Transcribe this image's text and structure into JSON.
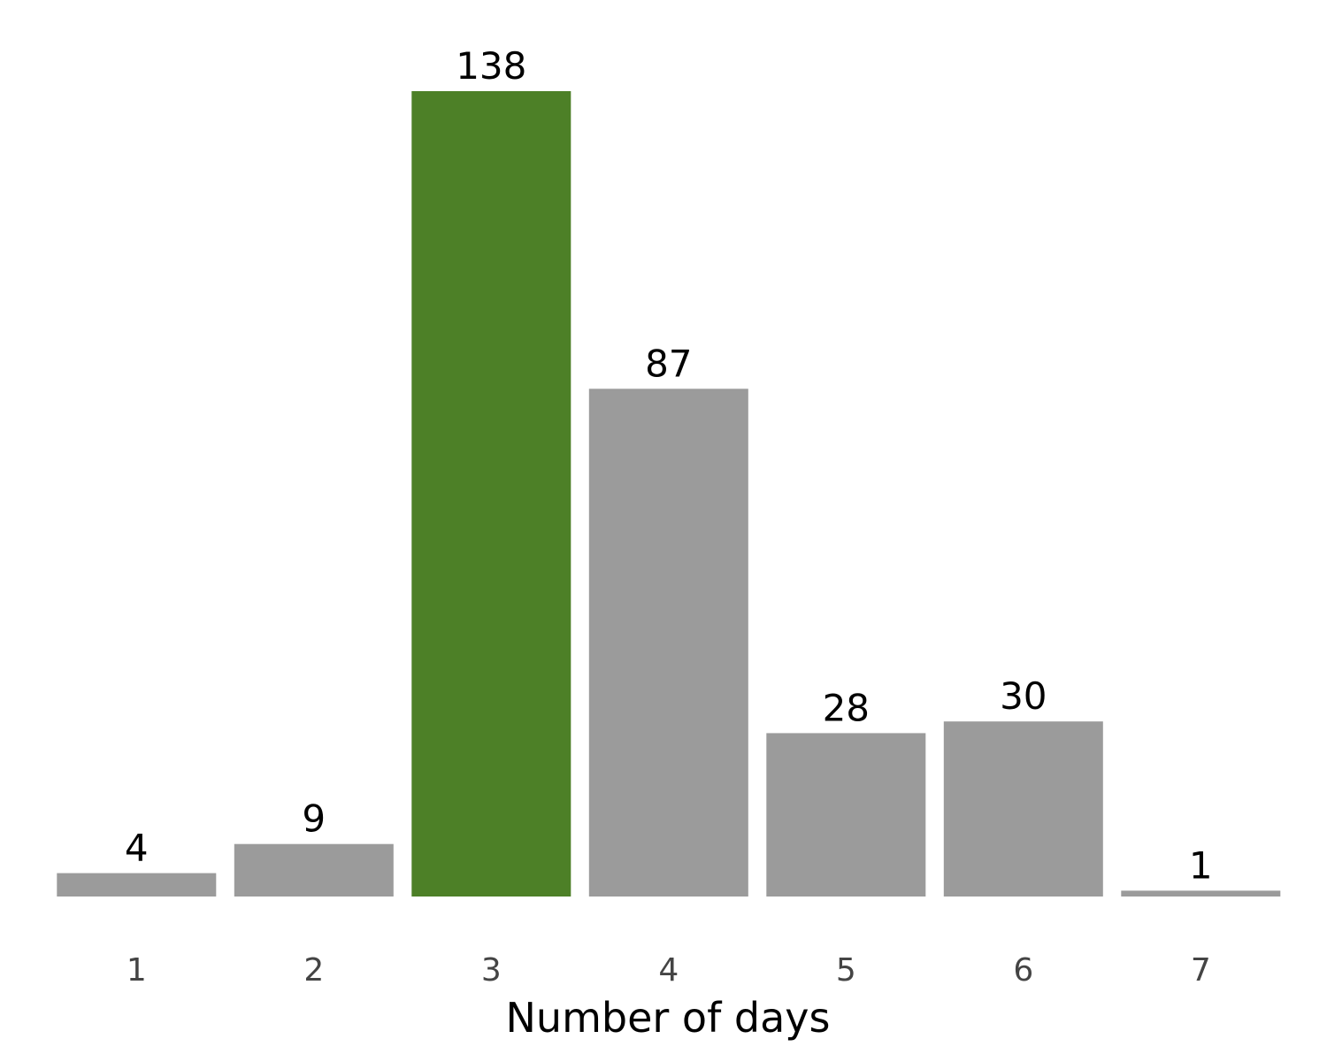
{
  "chart_data": {
    "type": "bar",
    "categories": [
      "1",
      "2",
      "3",
      "4",
      "5",
      "6",
      "7"
    ],
    "values": [
      4,
      9,
      138,
      87,
      28,
      30,
      1
    ],
    "data_labels": [
      "4",
      "9",
      "138",
      "87",
      "28",
      "30",
      "1"
    ],
    "highlight_index": 2,
    "xlabel": "Number of days",
    "ylabel": "",
    "title": "",
    "ylim": [
      0,
      138
    ],
    "grid": false,
    "legend": "none",
    "colors": {
      "default_bar": "#9b9b9b",
      "highlight_bar": "#4d8027"
    }
  }
}
